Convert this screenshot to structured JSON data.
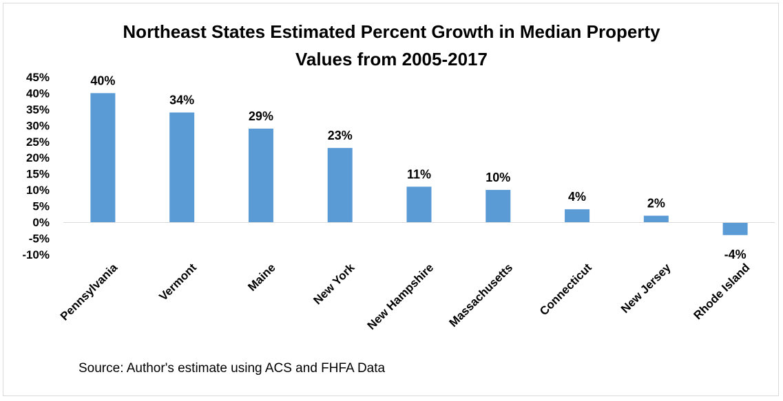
{
  "chart_data": {
    "type": "bar",
    "title": "Northeast States Estimated Percent Growth in Median Property Values from 2005-2017",
    "title_lines": [
      "Northeast States Estimated Percent Growth in Median Property",
      "Values from 2005-2017"
    ],
    "xlabel": "",
    "ylabel": "",
    "categories": [
      "Pennsylvania",
      "Vermont",
      "Maine",
      "New York",
      "New Hampshire",
      "Massachusetts",
      "Connecticut",
      "New Jersey",
      "Rhode Island"
    ],
    "values": [
      40,
      34,
      29,
      23,
      11,
      10,
      4,
      2,
      -4
    ],
    "data_labels": [
      "40%",
      "34%",
      "29%",
      "23%",
      "11%",
      "10%",
      "4%",
      "2%",
      "-4%"
    ],
    "ylim": [
      -10,
      45
    ],
    "y_ticks": [
      45,
      40,
      35,
      30,
      25,
      20,
      15,
      10,
      5,
      0,
      -5,
      -10
    ],
    "y_tick_labels": [
      "45%",
      "40%",
      "35%",
      "30%",
      "25%",
      "20%",
      "15%",
      "10%",
      "5%",
      "0%",
      "-5%",
      "-10%"
    ],
    "grid": false,
    "legend": "none",
    "bar_color": "#5b9bd5",
    "axis_color": "#d9d9d9"
  },
  "source_note": "Source: Author's estimate using ACS and FHFA Data"
}
